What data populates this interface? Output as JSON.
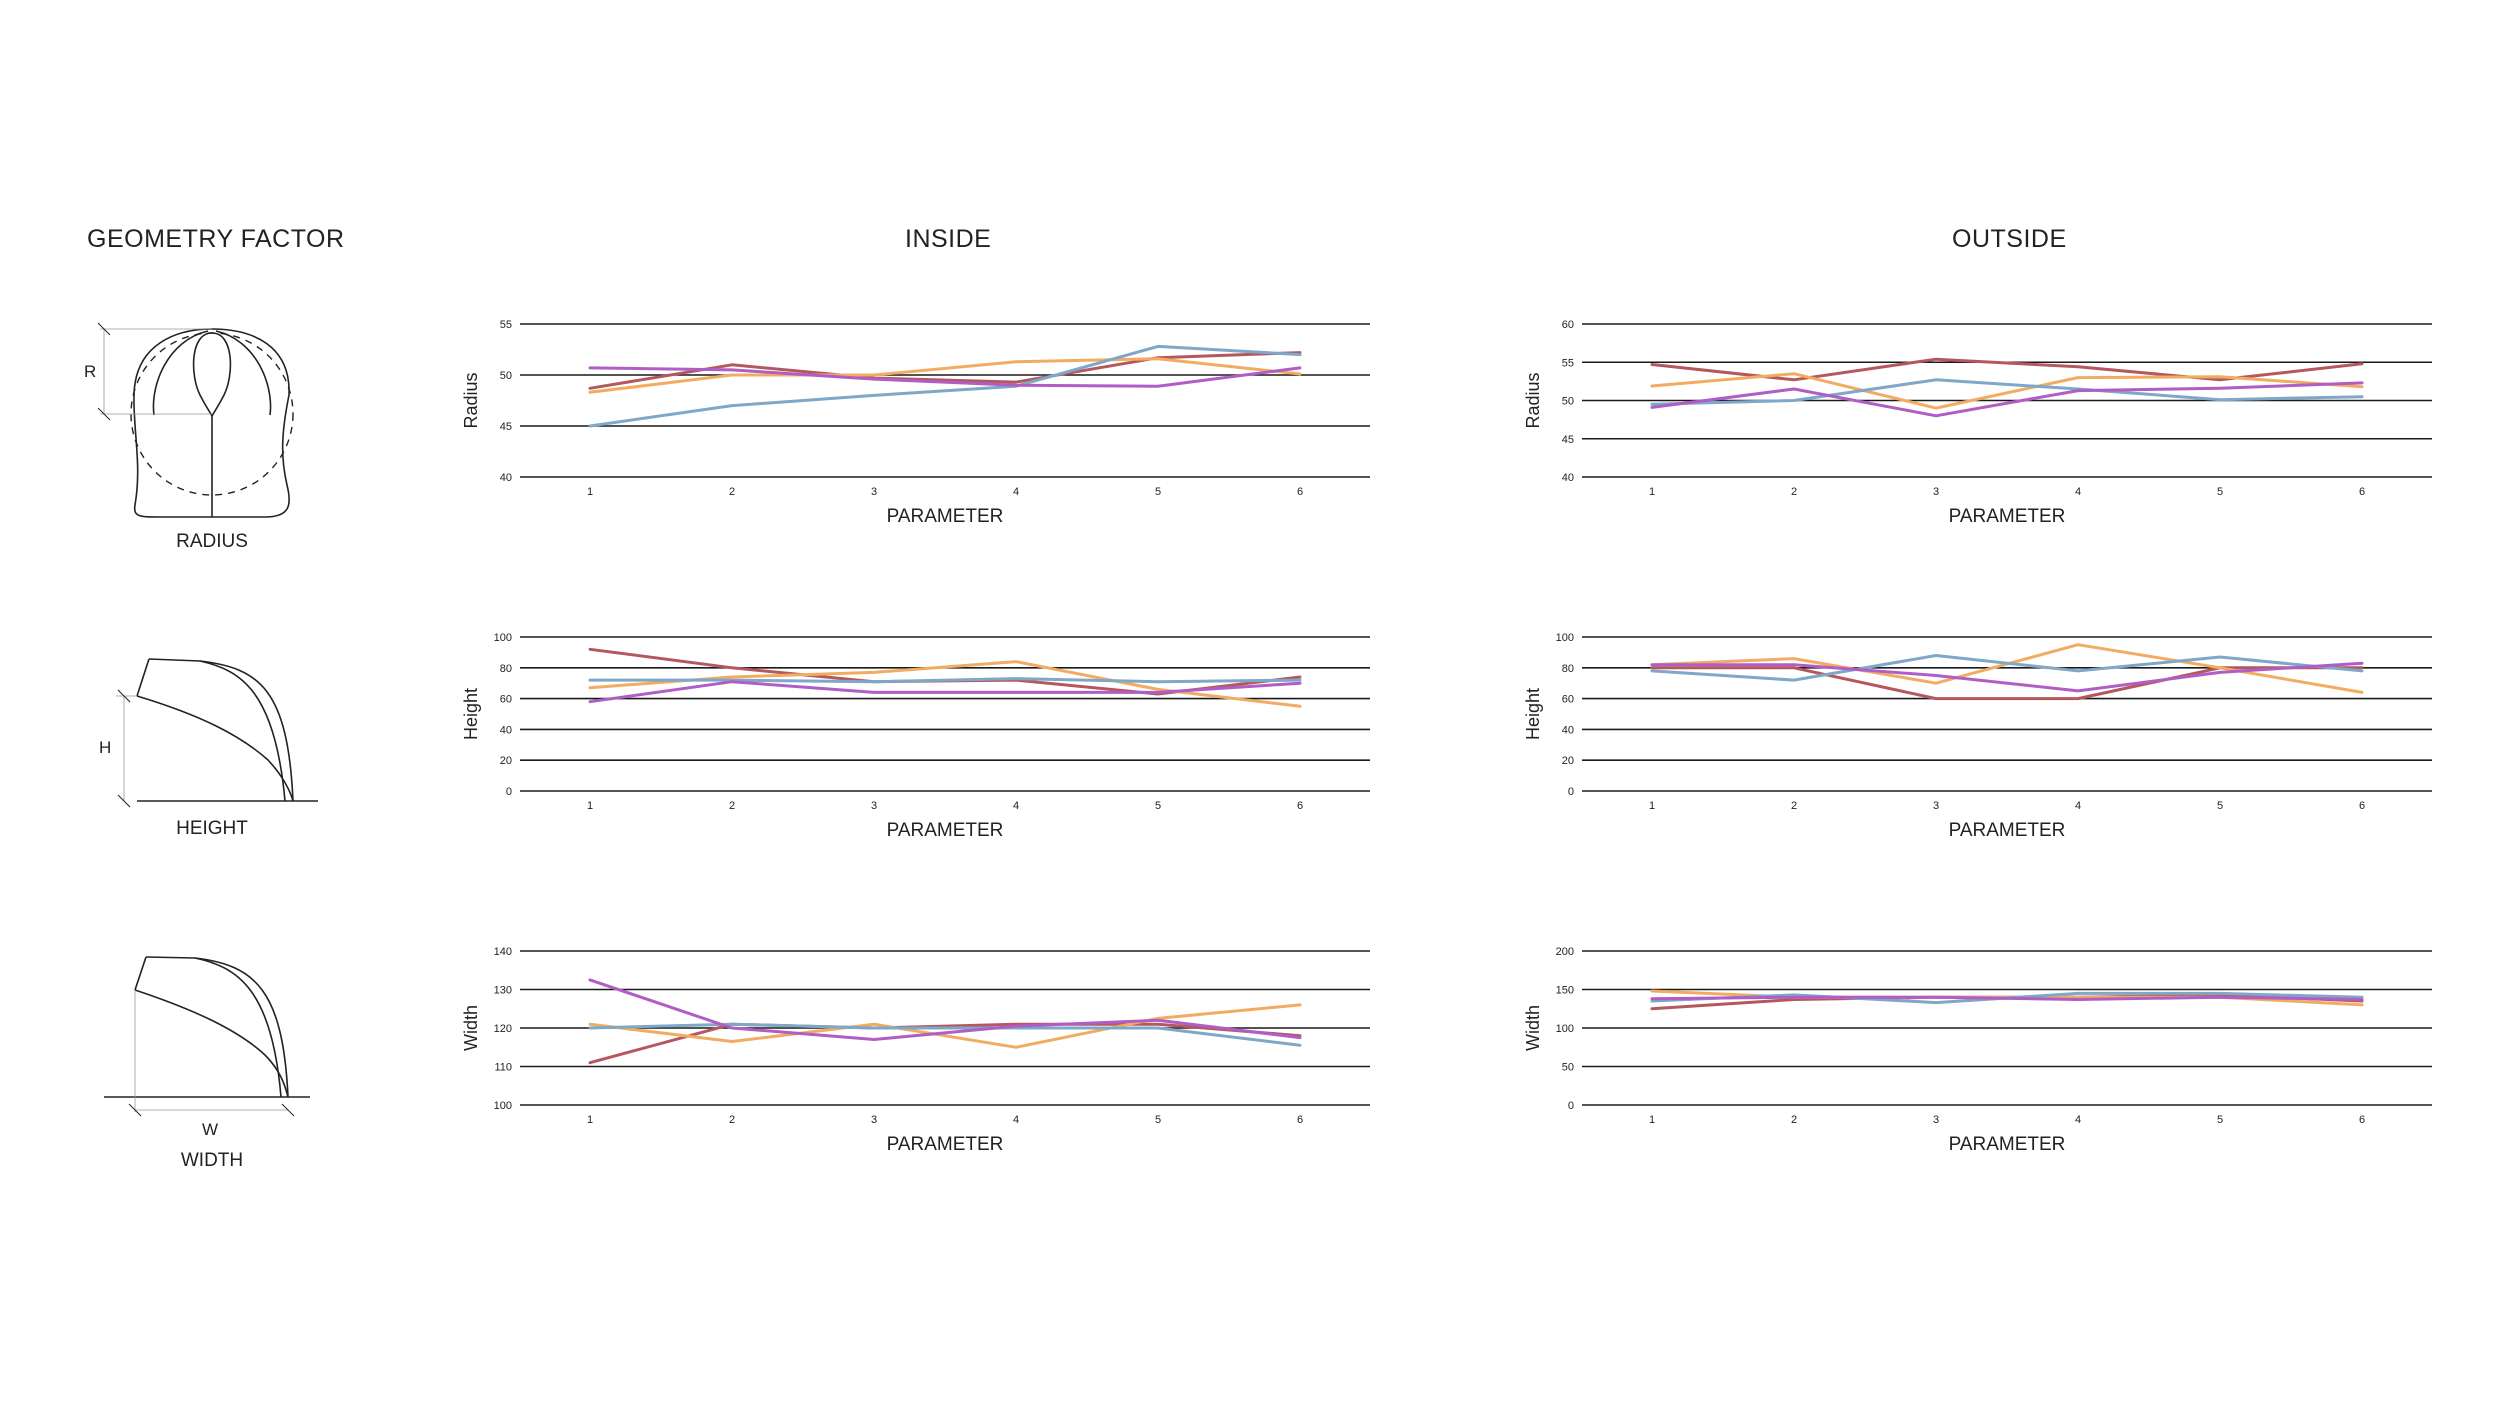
{
  "headings": {
    "geometry": "GEOMETRY FACTOR",
    "inside": "INSIDE",
    "outside": "OUTSIDE"
  },
  "diagrams": [
    {
      "letter": "R",
      "label": "RADIUS"
    },
    {
      "letter": "H",
      "label": "HEIGHT"
    },
    {
      "letter": "W",
      "label": "WIDTH"
    }
  ],
  "series_colors": [
    "#b5585e",
    "#f2ac62",
    "#7ea7c8",
    "#b05ec6"
  ],
  "chart_data": [
    {
      "id": "inside-radius",
      "type": "line",
      "group": "INSIDE",
      "xlabel": "PARAMETER",
      "ylabel": "Radius",
      "x": [
        1,
        2,
        3,
        4,
        5,
        6
      ],
      "ylim": [
        40,
        55
      ],
      "yticks": [
        40,
        45,
        50,
        55
      ],
      "series": [
        {
          "name": "red",
          "values": [
            48.7,
            51.0,
            49.7,
            49.3,
            51.7,
            52.2
          ]
        },
        {
          "name": "orange",
          "values": [
            48.3,
            50.0,
            50.0,
            51.3,
            51.6,
            50.1
          ]
        },
        {
          "name": "blue",
          "values": [
            45.0,
            47.0,
            48.0,
            48.9,
            52.8,
            52.0
          ]
        },
        {
          "name": "purple",
          "values": [
            50.7,
            50.5,
            49.6,
            49.0,
            48.9,
            50.7
          ]
        }
      ]
    },
    {
      "id": "outside-radius",
      "type": "line",
      "group": "OUTSIDE",
      "xlabel": "PARAMETER",
      "ylabel": "Radius",
      "x": [
        1,
        2,
        3,
        4,
        5,
        6
      ],
      "ylim": [
        40,
        60
      ],
      "yticks": [
        40,
        45,
        50,
        55,
        60
      ],
      "series": [
        {
          "name": "red",
          "values": [
            54.7,
            52.7,
            55.4,
            54.4,
            52.7,
            54.8
          ]
        },
        {
          "name": "orange",
          "values": [
            51.9,
            53.5,
            49.0,
            53.0,
            53.1,
            51.8
          ]
        },
        {
          "name": "blue",
          "values": [
            49.5,
            50.0,
            52.7,
            51.5,
            50.1,
            50.5
          ]
        },
        {
          "name": "purple",
          "values": [
            49.1,
            51.5,
            48.0,
            51.3,
            51.6,
            52.3
          ]
        }
      ]
    },
    {
      "id": "inside-height",
      "type": "line",
      "group": "INSIDE",
      "xlabel": "PARAMETER",
      "ylabel": "Height",
      "x": [
        1,
        2,
        3,
        4,
        5,
        6
      ],
      "ylim": [
        0,
        100
      ],
      "yticks": [
        0,
        20,
        40,
        60,
        80,
        100
      ],
      "series": [
        {
          "name": "red",
          "values": [
            92,
            80,
            71,
            72,
            63,
            74
          ]
        },
        {
          "name": "orange",
          "values": [
            67,
            74,
            77,
            84,
            66,
            55
          ]
        },
        {
          "name": "blue",
          "values": [
            72,
            72,
            71,
            73,
            71,
            72
          ]
        },
        {
          "name": "purple",
          "values": [
            58,
            71,
            64,
            64,
            64,
            70
          ]
        }
      ]
    },
    {
      "id": "outside-height",
      "type": "line",
      "group": "OUTSIDE",
      "xlabel": "PARAMETER",
      "ylabel": "Height",
      "x": [
        1,
        2,
        3,
        4,
        5,
        6
      ],
      "ylim": [
        0,
        100
      ],
      "yticks": [
        0,
        20,
        40,
        60,
        80,
        100
      ],
      "series": [
        {
          "name": "red",
          "values": [
            80,
            80,
            60,
            60,
            80,
            80
          ]
        },
        {
          "name": "orange",
          "values": [
            82,
            86,
            70,
            95,
            80,
            64
          ]
        },
        {
          "name": "blue",
          "values": [
            78,
            72,
            88,
            78,
            87,
            78
          ]
        },
        {
          "name": "purple",
          "values": [
            82,
            82,
            75,
            65,
            77,
            83
          ]
        }
      ]
    },
    {
      "id": "inside-width",
      "type": "line",
      "group": "INSIDE",
      "xlabel": "PARAMETER",
      "ylabel": "Width",
      "x": [
        1,
        2,
        3,
        4,
        5,
        6
      ],
      "ylim": [
        100,
        140
      ],
      "yticks": [
        100,
        110,
        120,
        130,
        140
      ],
      "series": [
        {
          "name": "red",
          "values": [
            111,
            121,
            120,
            121,
            121,
            118
          ]
        },
        {
          "name": "orange",
          "values": [
            121,
            116.5,
            121,
            115,
            122.5,
            126
          ]
        },
        {
          "name": "blue",
          "values": [
            120,
            121,
            120,
            120,
            120,
            115.5
          ]
        },
        {
          "name": "purple",
          "values": [
            132.5,
            120,
            117,
            120.5,
            122,
            117.5
          ]
        }
      ]
    },
    {
      "id": "outside-width",
      "type": "line",
      "group": "OUTSIDE",
      "xlabel": "PARAMETER",
      "ylabel": "Width",
      "x": [
        1,
        2,
        3,
        4,
        5,
        6
      ],
      "ylim": [
        0,
        200
      ],
      "yticks": [
        0,
        50,
        100,
        150,
        200
      ],
      "series": [
        {
          "name": "red",
          "values": [
            125,
            137,
            140,
            140,
            143,
            135
          ]
        },
        {
          "name": "orange",
          "values": [
            148,
            140,
            140,
            140,
            140,
            130
          ]
        },
        {
          "name": "blue",
          "values": [
            135,
            143,
            133,
            145,
            145,
            140
          ]
        },
        {
          "name": "purple",
          "values": [
            138,
            140,
            140,
            137,
            140,
            137
          ]
        }
      ]
    }
  ]
}
